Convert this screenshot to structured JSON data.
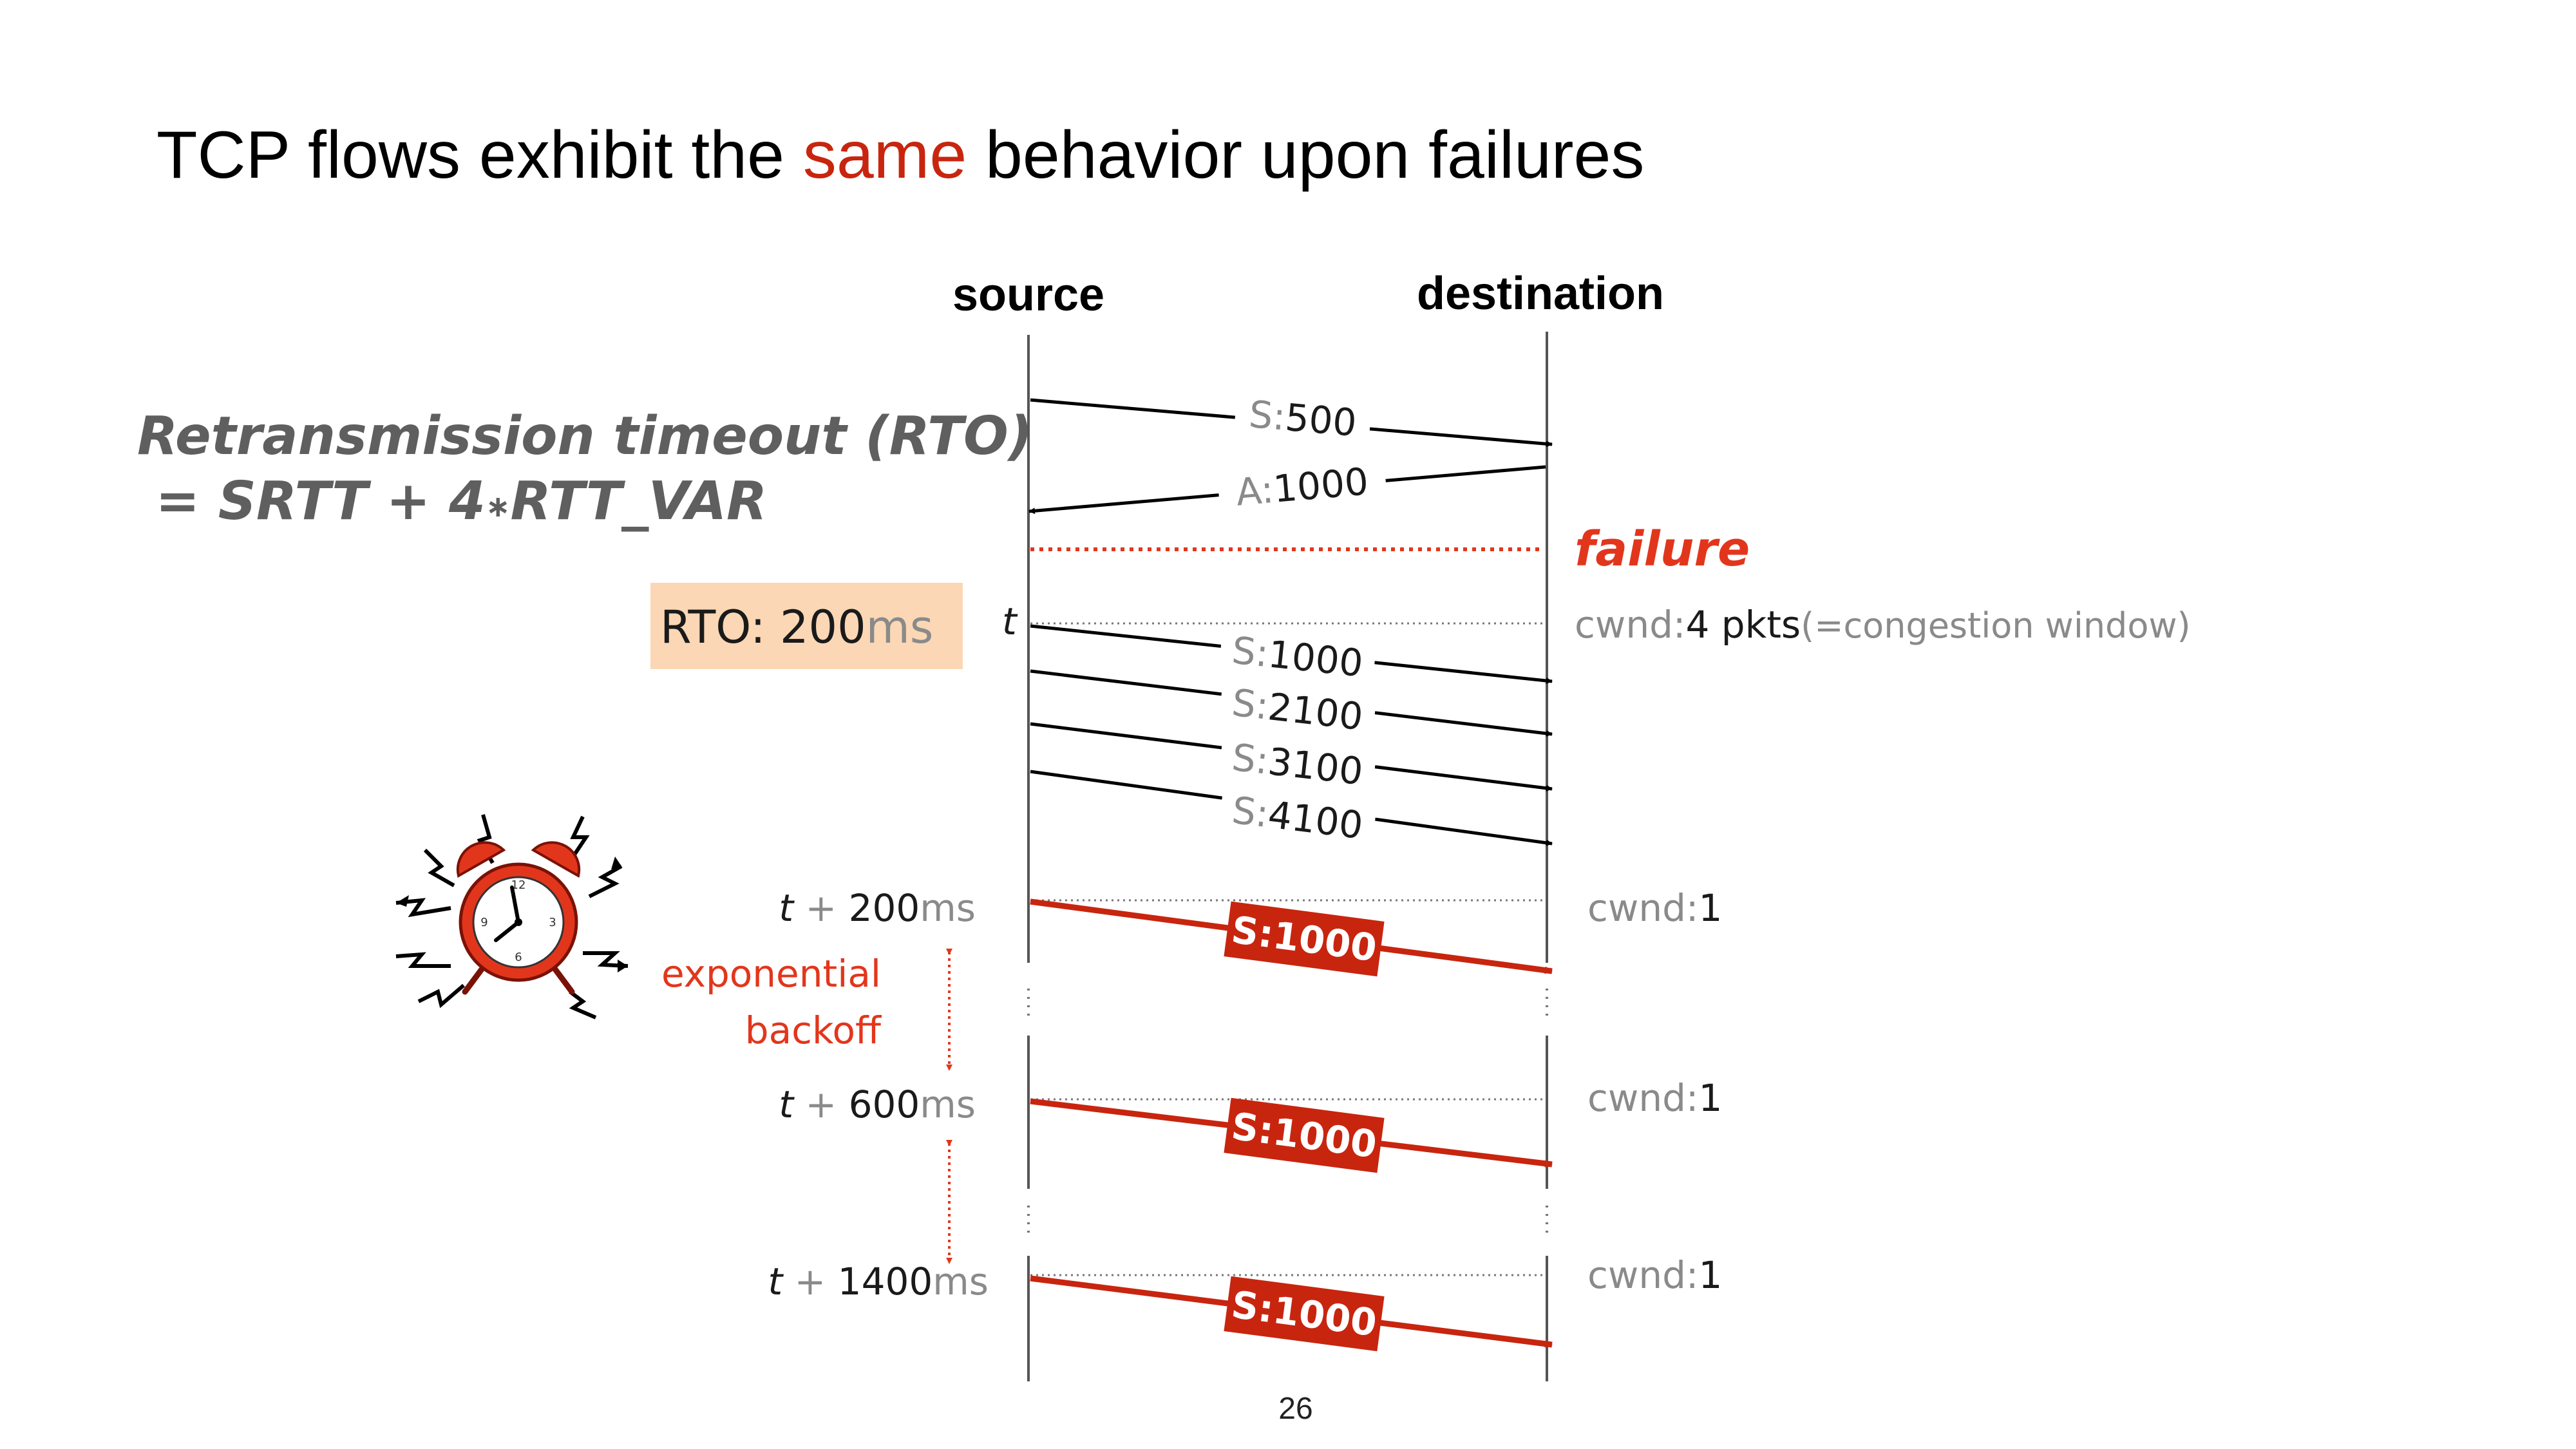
{
  "slide": {
    "title_pre": "TCP flows exhibit the ",
    "title_accent": "same",
    "title_post": " behavior upon failures",
    "page_number": "26"
  },
  "columns": {
    "source": "source",
    "destination": "destination"
  },
  "formula": {
    "line1": "Retransmission timeout (RTO)",
    "line2_pre": " = SRTT + 4",
    "line2_op": "∗",
    "line2_post": "RTT_VAR"
  },
  "messages": {
    "initial": [
      {
        "label": "S:",
        "value": "500"
      },
      {
        "label": "A:",
        "value": "1000"
      }
    ],
    "window": [
      {
        "label": "S:",
        "value": "1000"
      },
      {
        "label": "S:",
        "value": "2100"
      },
      {
        "label": "S:",
        "value": "3100"
      },
      {
        "label": "S:",
        "value": "4100"
      }
    ],
    "retransmissions": [
      "S:1000",
      "S:1000",
      "S:1000"
    ]
  },
  "failure_label": "failure",
  "rto_box": {
    "label": "RTO: 200",
    "unit": "ms"
  },
  "t_marker": "t",
  "times": [
    {
      "t": "t",
      "plus": " + ",
      "value": "200",
      "unit": "ms"
    },
    {
      "t": "t",
      "plus": " + ",
      "value": "600",
      "unit": "ms"
    },
    {
      "t": "t",
      "plus": " + ",
      "value": "1400",
      "unit": "ms"
    }
  ],
  "cwnd": {
    "initial_label": "cwnd:",
    "initial_value": "4 pkts",
    "initial_note": "(=congestion window)",
    "after": [
      {
        "label": "cwnd:",
        "value": "1"
      },
      {
        "label": "cwnd:",
        "value": "1"
      },
      {
        "label": "cwnd:",
        "value": "1"
      }
    ]
  },
  "backoff": {
    "line1": "exponential",
    "line2": "backoff"
  },
  "icons": {
    "alarm": "alarm-clock-icon"
  },
  "colors": {
    "accent": "#c8250f",
    "failure": "#e2361c",
    "retransmission": "#c8250f",
    "rto_box": "#fbd7b5",
    "timeline": "#555555"
  }
}
